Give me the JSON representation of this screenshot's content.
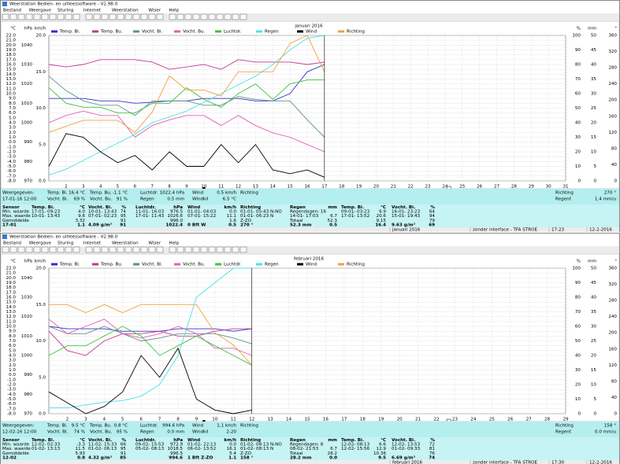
{
  "axes": {
    "temp": {
      "label": "°C",
      "color": "#2a2aa8",
      "lim": [
        -8,
        22
      ],
      "ticks": [
        {
          "value": 22,
          "label": "22.0"
        },
        {
          "value": 21,
          "label": "21.0"
        },
        {
          "value": 20,
          "label": "20.0"
        },
        {
          "value": 19,
          "label": "19.0"
        },
        {
          "value": 18,
          "label": "18.0"
        },
        {
          "value": 17,
          "label": "17.0"
        },
        {
          "value": 16,
          "label": "16.0"
        },
        {
          "value": 15,
          "label": "15.0"
        },
        {
          "value": 14,
          "label": "14.0"
        },
        {
          "value": 13,
          "label": "13.0"
        },
        {
          "value": 12,
          "label": "12.0"
        },
        {
          "value": 11,
          "label": "11.0"
        },
        {
          "value": 10,
          "label": "10.0"
        },
        {
          "value": 9,
          "label": "9.0"
        },
        {
          "value": 8,
          "label": "8.0"
        },
        {
          "value": 7,
          "label": "7.0"
        },
        {
          "value": 6,
          "label": "6.0"
        },
        {
          "value": 5,
          "label": "5.0"
        },
        {
          "value": 4,
          "label": "4.0"
        },
        {
          "value": 3,
          "label": "3.0"
        },
        {
          "value": 2,
          "label": "2.0"
        },
        {
          "value": 1,
          "label": "1.0"
        },
        {
          "value": 0,
          "label": "0.0"
        },
        {
          "value": -1,
          "label": "-1.0"
        },
        {
          "value": -2,
          "label": "-2.0"
        },
        {
          "value": -3,
          "label": "-3.0"
        },
        {
          "value": -4,
          "label": "-4.0"
        },
        {
          "value": -5,
          "label": "-5.0"
        },
        {
          "value": -6,
          "label": "-6.0"
        },
        {
          "value": -7,
          "label": "-7.0"
        },
        {
          "value": -8,
          "label": "-8.0"
        }
      ]
    },
    "hpa": {
      "label": "hPa",
      "color": "#30b030",
      "lim": [
        970,
        1045
      ],
      "ticks": [
        1040,
        1030,
        1020,
        1010,
        1000,
        990,
        980,
        970
      ]
    },
    "wind": {
      "label": "km/h",
      "color": "#208080",
      "lim": [
        0,
        20
      ],
      "ticks": [
        {
          "value": 20,
          "label": "20.0"
        },
        {
          "value": 15,
          "label": "15.0"
        },
        {
          "value": 10,
          "label": "10.0"
        },
        {
          "value": 5,
          "label": "5.0"
        },
        {
          "value": 0,
          "label": "0.0"
        }
      ]
    },
    "pct": {
      "label": "%",
      "color": "#309090",
      "lim": [
        0,
        100
      ],
      "ticks": [
        100,
        90,
        80,
        70,
        60,
        50,
        40,
        30,
        20,
        10,
        0
      ]
    },
    "mm": {
      "label": "mm",
      "color": "#30c8d8",
      "lim": [
        0,
        50
      ],
      "ticks": [
        50,
        45,
        40,
        35,
        30,
        25,
        20,
        15,
        10,
        5,
        0
      ]
    },
    "deg": {
      "label": "°",
      "color": "#e89030",
      "lim": [
        0,
        360
      ],
      "ticks": [
        360,
        320,
        280,
        240,
        200,
        160,
        120,
        80,
        40,
        0
      ]
    }
  },
  "windows": [
    {
      "title": "Weerstation Bedien- en uitleessoftware - V2.98.0",
      "menu": [
        "Bestand",
        "Weergave",
        "Sturing",
        "Internet",
        "Weerstation",
        "Wiser",
        "Help"
      ],
      "chart": {
        "type": "line",
        "title": "januari 2016",
        "xlim": [
          1,
          31
        ],
        "xticks": [
          2,
          3,
          4,
          5,
          6,
          7,
          8,
          9,
          10,
          11,
          12,
          13,
          14,
          15,
          16,
          17,
          18,
          19,
          20,
          21,
          22,
          23,
          24,
          25,
          26,
          27,
          28,
          29,
          30,
          31
        ],
        "x": [
          1,
          2,
          3,
          4,
          5,
          6,
          7,
          8,
          9,
          10,
          11,
          12,
          13,
          14,
          15,
          16,
          17
        ],
        "series": [
          {
            "name": "Temp. Bi.",
            "color": "#3030c8",
            "axis": "temp",
            "values": [
              9,
              9,
              9,
              8.5,
              8.5,
              8,
              8.2,
              8.5,
              8.5,
              9,
              9,
              9,
              8.5,
              8.5,
              10,
              14.5,
              16
            ]
          },
          {
            "name": "Temp. Bu.",
            "color": "#c03890",
            "axis": "temp",
            "values": [
              16,
              15.5,
              16,
              17,
              17,
              17,
              16.5,
              15,
              15.5,
              16,
              15,
              17,
              16.5,
              16.5,
              16.5,
              16,
              16.5
            ]
          },
          {
            "name": "Vocht. Bi.",
            "color": "#609090",
            "axis": "pct",
            "values": [
              72,
              62,
              55,
              52,
              52,
              45,
              55,
              55,
              55,
              52,
              52,
              58,
              56,
              55,
              55,
              42,
              30
            ]
          },
          {
            "name": "Vocht. Bu.",
            "color": "#e060b0",
            "axis": "pct",
            "values": [
              40,
              45,
              48,
              45,
              45,
              30,
              38,
              42,
              45,
              45,
              38,
              45,
              38,
              33,
              30,
              25,
              20
            ]
          },
          {
            "name": "Luchtdr.",
            "color": "#40c040",
            "axis": "hpa",
            "values": [
              1018,
              1010,
              1008,
              1008,
              1005,
              1005,
              1010,
              1010,
              1018,
              1012,
              1008,
              1015,
              1020,
              1012,
              1020,
              1022,
              1022
            ]
          },
          {
            "name": "Regen",
            "color": "#50e0e0",
            "axis": "mm",
            "values": [
              2,
              4,
              7,
              10,
              13,
              16,
              20,
              22,
              24,
              27,
              30,
              33,
              36,
              40,
              45,
              49,
              50
            ]
          },
          {
            "name": "Wind",
            "color": "#000000",
            "axis": "wind",
            "values": [
              2,
              6.5,
              6,
              4,
              2.5,
              3.5,
              1.5,
              4,
              2,
              2,
              5,
              2.5,
              5,
              1.5,
              1,
              1.5,
              0.5
            ]
          },
          {
            "name": "Richting",
            "color": "#f0a040",
            "axis": "deg",
            "values": [
              120,
              135,
              150,
              150,
              150,
              120,
              170,
              260,
              225,
              225,
              210,
              270,
              270,
              270,
              340,
              360,
              270
            ]
          }
        ]
      },
      "status": [
        [
          "Weergegeven:",
          "Temp. Bi.",
          "16.4 °C",
          "Temp. Bu.",
          "-1.1 °C",
          "Luchtdr.",
          "1022.4 hPa",
          "Wind",
          "0.5 km/h",
          "Richting"
        ],
        [
          "17-01-16 12:00",
          "Vocht. Bi.",
          "69 %",
          "Vocht. Bu.",
          "91 %",
          "Regen",
          "0.5 mm",
          "Windkil",
          "6.5 °C"
        ]
      ],
      "status_right": [
        [
          "Richting",
          "270 °"
        ],
        [
          "Regenf.",
          "1.4 mm/u"
        ]
      ],
      "stats": [
        [
          "Sensor",
          "Temp. Bi.",
          "°C",
          "Vocht. Bi.",
          "%",
          "Luchtdr.",
          "hPa",
          "Wind",
          "km/h",
          "Richting",
          "Regen",
          "mm",
          "Temp. Bi.",
          "°C",
          "Vocht. Bi.",
          "%"
        ],
        [
          "Min. waarde",
          "17-01- 09:23",
          "4.0",
          "10-01- 13:43",
          "74",
          "11-01- 16:03",
          "976.5",
          "01-01- 04:03",
          "0.0",
          "01-01- 05:43 N-NO",
          "Regendagen: 16",
          null,
          "09-01- 03:23",
          "6.9",
          "16-01- 23:23",
          "64"
        ],
        [
          "Max. waarde",
          "10-01- 13:43",
          "9.6",
          "07-01- 02:23",
          "95",
          "17-01- 11:43",
          "1026.6",
          "07-01- 15:22",
          "11.1",
          "01-01- 06:23 N",
          "14-01- 17:03",
          "6.7",
          "17-01- 13:52",
          "20.6",
          "15-01- 19:43",
          "94"
        ],
        [
          "Gemiddelde",
          null,
          "3.32",
          null,
          "91",
          null,
          "996.0",
          null,
          "1.6",
          "Z-ZO",
          "Totaal",
          "52.3",
          null,
          "9.15",
          null,
          "79"
        ],
        [
          "17-01",
          null,
          "1.1",
          "4.09 g/m³",
          "91",
          null,
          "1022.4",
          "0 Bft W",
          "0.5",
          "270 °",
          "52.3 mm",
          "0.5",
          null,
          "16.4",
          "9.63 g/m³",
          "69"
        ]
      ],
      "statusbar": [
        "januari 2016",
        "zonder interface - TFA STROE",
        "17:23",
        "12-2-2016"
      ]
    },
    {
      "title": "Weerstation Bedien- en uitleessoftware - V2.98.0",
      "menu": [
        "Bestand",
        "Weergave",
        "Sturing",
        "Internet",
        "Weerstation",
        "Wiser",
        "Help"
      ],
      "chart": {
        "type": "line",
        "title": "februari 2016",
        "xlim": [
          1,
          29
        ],
        "xticks": [
          2,
          3,
          4,
          5,
          6,
          7,
          8,
          9,
          10,
          11,
          12,
          13,
          14,
          15,
          16,
          17,
          18,
          19,
          20,
          21,
          22,
          23,
          24,
          25,
          26,
          27,
          28,
          29
        ],
        "x": [
          1,
          2,
          3,
          4,
          5,
          6,
          7,
          8,
          9,
          10,
          11,
          12
        ],
        "series": [
          {
            "name": "Temp. Bi.",
            "color": "#3030c8",
            "axis": "temp",
            "values": [
              10,
              9.5,
              9.5,
              9.5,
              9,
              9,
              9,
              9.5,
              9.5,
              9.5,
              9,
              9.5
            ]
          },
          {
            "name": "Temp. Bu.",
            "color": "#c03890",
            "axis": "temp",
            "values": [
              9,
              5,
              4,
              7,
              8.5,
              8.5,
              9,
              8,
              8,
              9,
              9.5,
              9.5
            ]
          },
          {
            "name": "Vocht. Bi.",
            "color": "#609090",
            "axis": "pct",
            "values": [
              60,
              55,
              55,
              60,
              55,
              50,
              52,
              55,
              55,
              55,
              52,
              48
            ]
          },
          {
            "name": "Vocht. Bu.",
            "color": "#e060b0",
            "axis": "pct",
            "values": [
              65,
              55,
              60,
              65,
              55,
              52,
              55,
              60,
              55,
              45,
              45,
              40
            ]
          },
          {
            "name": "Luchtdr.",
            "color": "#40c040",
            "axis": "hpa",
            "values": [
              1000,
              1005,
              1005,
              1010,
              1015,
              1010,
              1000,
              1005,
              1010,
              1005,
              1000,
              995
            ]
          },
          {
            "name": "Regen",
            "color": "#50e0e0",
            "axis": "mm",
            "values": [
              2,
              2,
              3,
              4,
              4.5,
              6,
              10,
              20,
              40,
              45,
              50,
              50
            ]
          },
          {
            "name": "Wind",
            "color": "#000000",
            "axis": "wind",
            "values": [
              3,
              1.5,
              0,
              1,
              3,
              8,
              5,
              9,
              2,
              0.5,
              0,
              0.5
            ]
          },
          {
            "name": "Richting",
            "color": "#f0a040",
            "axis": "deg",
            "values": [
              270,
              270,
              250,
              270,
              250,
              270,
              270,
              270,
              270,
              200,
              170,
              120
            ]
          }
        ]
      },
      "status": [
        [
          "Weergegeven:",
          "Temp. Bi.",
          "9.5 °C",
          "Temp. Bu.",
          "0.8 °C",
          "Luchtdr.",
          "994.6 hPa",
          "Wind",
          "1.1 km/h",
          "Richting"
        ],
        [
          "12-02-16 12:00",
          "Vocht. Bi.",
          "74 %",
          "Vocht. Bu.",
          "95 %",
          "Regen",
          "0.0 mm",
          "Windkil",
          "2-20"
        ]
      ],
      "status_right": [
        [
          "Richting",
          "158 °"
        ],
        [
          "Regenf.",
          "0.0 mm/u"
        ]
      ],
      "stats": [
        [
          "Sensor",
          "Temp. Bi.",
          "°C",
          "Vocht. Bi.",
          "%",
          "Luchtdr.",
          "hPa",
          "Wind",
          "km/h",
          "Richting",
          "Regen",
          "mm",
          "Temp. Bi.",
          "°C",
          "Vocht. Bi.",
          "%"
        ],
        [
          "Min. waarde",
          "12-02- 02:33",
          "-3.3",
          "11-02- 15:33",
          "66",
          "09-02- 15:53",
          "972.9",
          "01-02- 22:13",
          "0.0",
          "01-02- 08:13 N-NO",
          "Regendagen: 8",
          null,
          "12-02- 08:13",
          "6.6",
          "12-02- 13:53",
          "72"
        ],
        [
          "Max. waarde",
          "01-02- 13:13",
          "11.5",
          "01-02- 06:13",
          "95",
          "05-02- 08:13",
          "1018.5",
          "06-02- 13:52",
          "16.1",
          "01-02- 08:13 N",
          "08-02- 21:53",
          "6.7",
          "12-02- 15:56",
          "12.9",
          "01-02- 09:33",
          "81"
        ],
        [
          "Gemiddelde",
          null,
          "5.93",
          null,
          "91",
          null,
          "996.5",
          null,
          "5.4",
          "Z-ZO",
          "Totaal",
          "28.2",
          null,
          "10.36",
          null,
          "76"
        ],
        [
          "12-02",
          null,
          "0.8",
          "4.32 g/m³",
          "85",
          null,
          "994.6",
          "1 Bft Z-ZO",
          "1.1",
          "158 °",
          "28.2 mm",
          "0.0",
          null,
          "9.5",
          "6.69 g/m³",
          "74"
        ]
      ],
      "statusbar": [
        "februari 2016",
        "zonder interface - TFA STROE",
        "17:30",
        "12-2-2016"
      ]
    }
  ]
}
